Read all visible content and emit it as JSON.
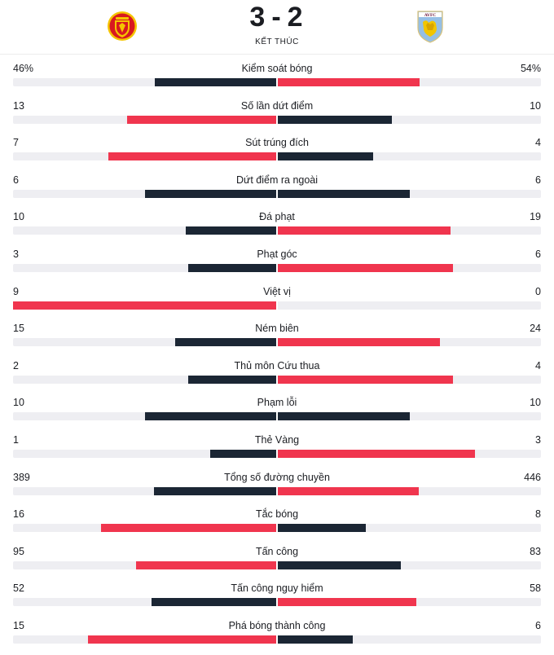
{
  "match": {
    "home_score": "3",
    "separator": "-",
    "away_score": "2",
    "status": "KẾT THÚC",
    "away_crest_text": "AVFC"
  },
  "colors": {
    "leading": "#f0354e",
    "trailing": "#1b2634",
    "track": "#eeeef2"
  },
  "stats": [
    {
      "name": "Kiểm soát bóng",
      "home": "46%",
      "away": "54%",
      "home_value": 46,
      "away_value": 54,
      "max": 100
    },
    {
      "name": "Số lần dứt điểm",
      "home": "13",
      "away": "10",
      "home_value": 13,
      "away_value": 10,
      "max": 23
    },
    {
      "name": "Sút trúng đích",
      "home": "7",
      "away": "4",
      "home_value": 7,
      "away_value": 4,
      "max": 11
    },
    {
      "name": "Dứt điểm ra ngoài",
      "home": "6",
      "away": "6",
      "home_value": 6,
      "away_value": 6,
      "max": 12
    },
    {
      "name": "Đá phạt",
      "home": "10",
      "away": "19",
      "home_value": 10,
      "away_value": 19,
      "max": 29
    },
    {
      "name": "Phạt góc",
      "home": "3",
      "away": "6",
      "home_value": 3,
      "away_value": 6,
      "max": 9
    },
    {
      "name": "Việt vị",
      "home": "9",
      "away": "0",
      "home_value": 9,
      "away_value": 0,
      "max": 9
    },
    {
      "name": "Ném biên",
      "home": "15",
      "away": "24",
      "home_value": 15,
      "away_value": 24,
      "max": 39
    },
    {
      "name": "Thủ môn Cứu thua",
      "home": "2",
      "away": "4",
      "home_value": 2,
      "away_value": 4,
      "max": 6
    },
    {
      "name": "Phạm lỗi",
      "home": "10",
      "away": "10",
      "home_value": 10,
      "away_value": 10,
      "max": 20
    },
    {
      "name": "Thẻ Vàng",
      "home": "1",
      "away": "3",
      "home_value": 1,
      "away_value": 3,
      "max": 4
    },
    {
      "name": "Tổng số đường chuyền",
      "home": "389",
      "away": "446",
      "home_value": 389,
      "away_value": 446,
      "max": 835
    },
    {
      "name": "Tắc bóng",
      "home": "16",
      "away": "8",
      "home_value": 16,
      "away_value": 8,
      "max": 24
    },
    {
      "name": "Tấn công",
      "home": "95",
      "away": "83",
      "home_value": 95,
      "away_value": 83,
      "max": 178
    },
    {
      "name": "Tấn công nguy hiểm",
      "home": "52",
      "away": "58",
      "home_value": 52,
      "away_value": 58,
      "max": 110
    },
    {
      "name": "Phá bóng thành công",
      "home": "15",
      "away": "6",
      "home_value": 15,
      "away_value": 6,
      "max": 21
    }
  ]
}
